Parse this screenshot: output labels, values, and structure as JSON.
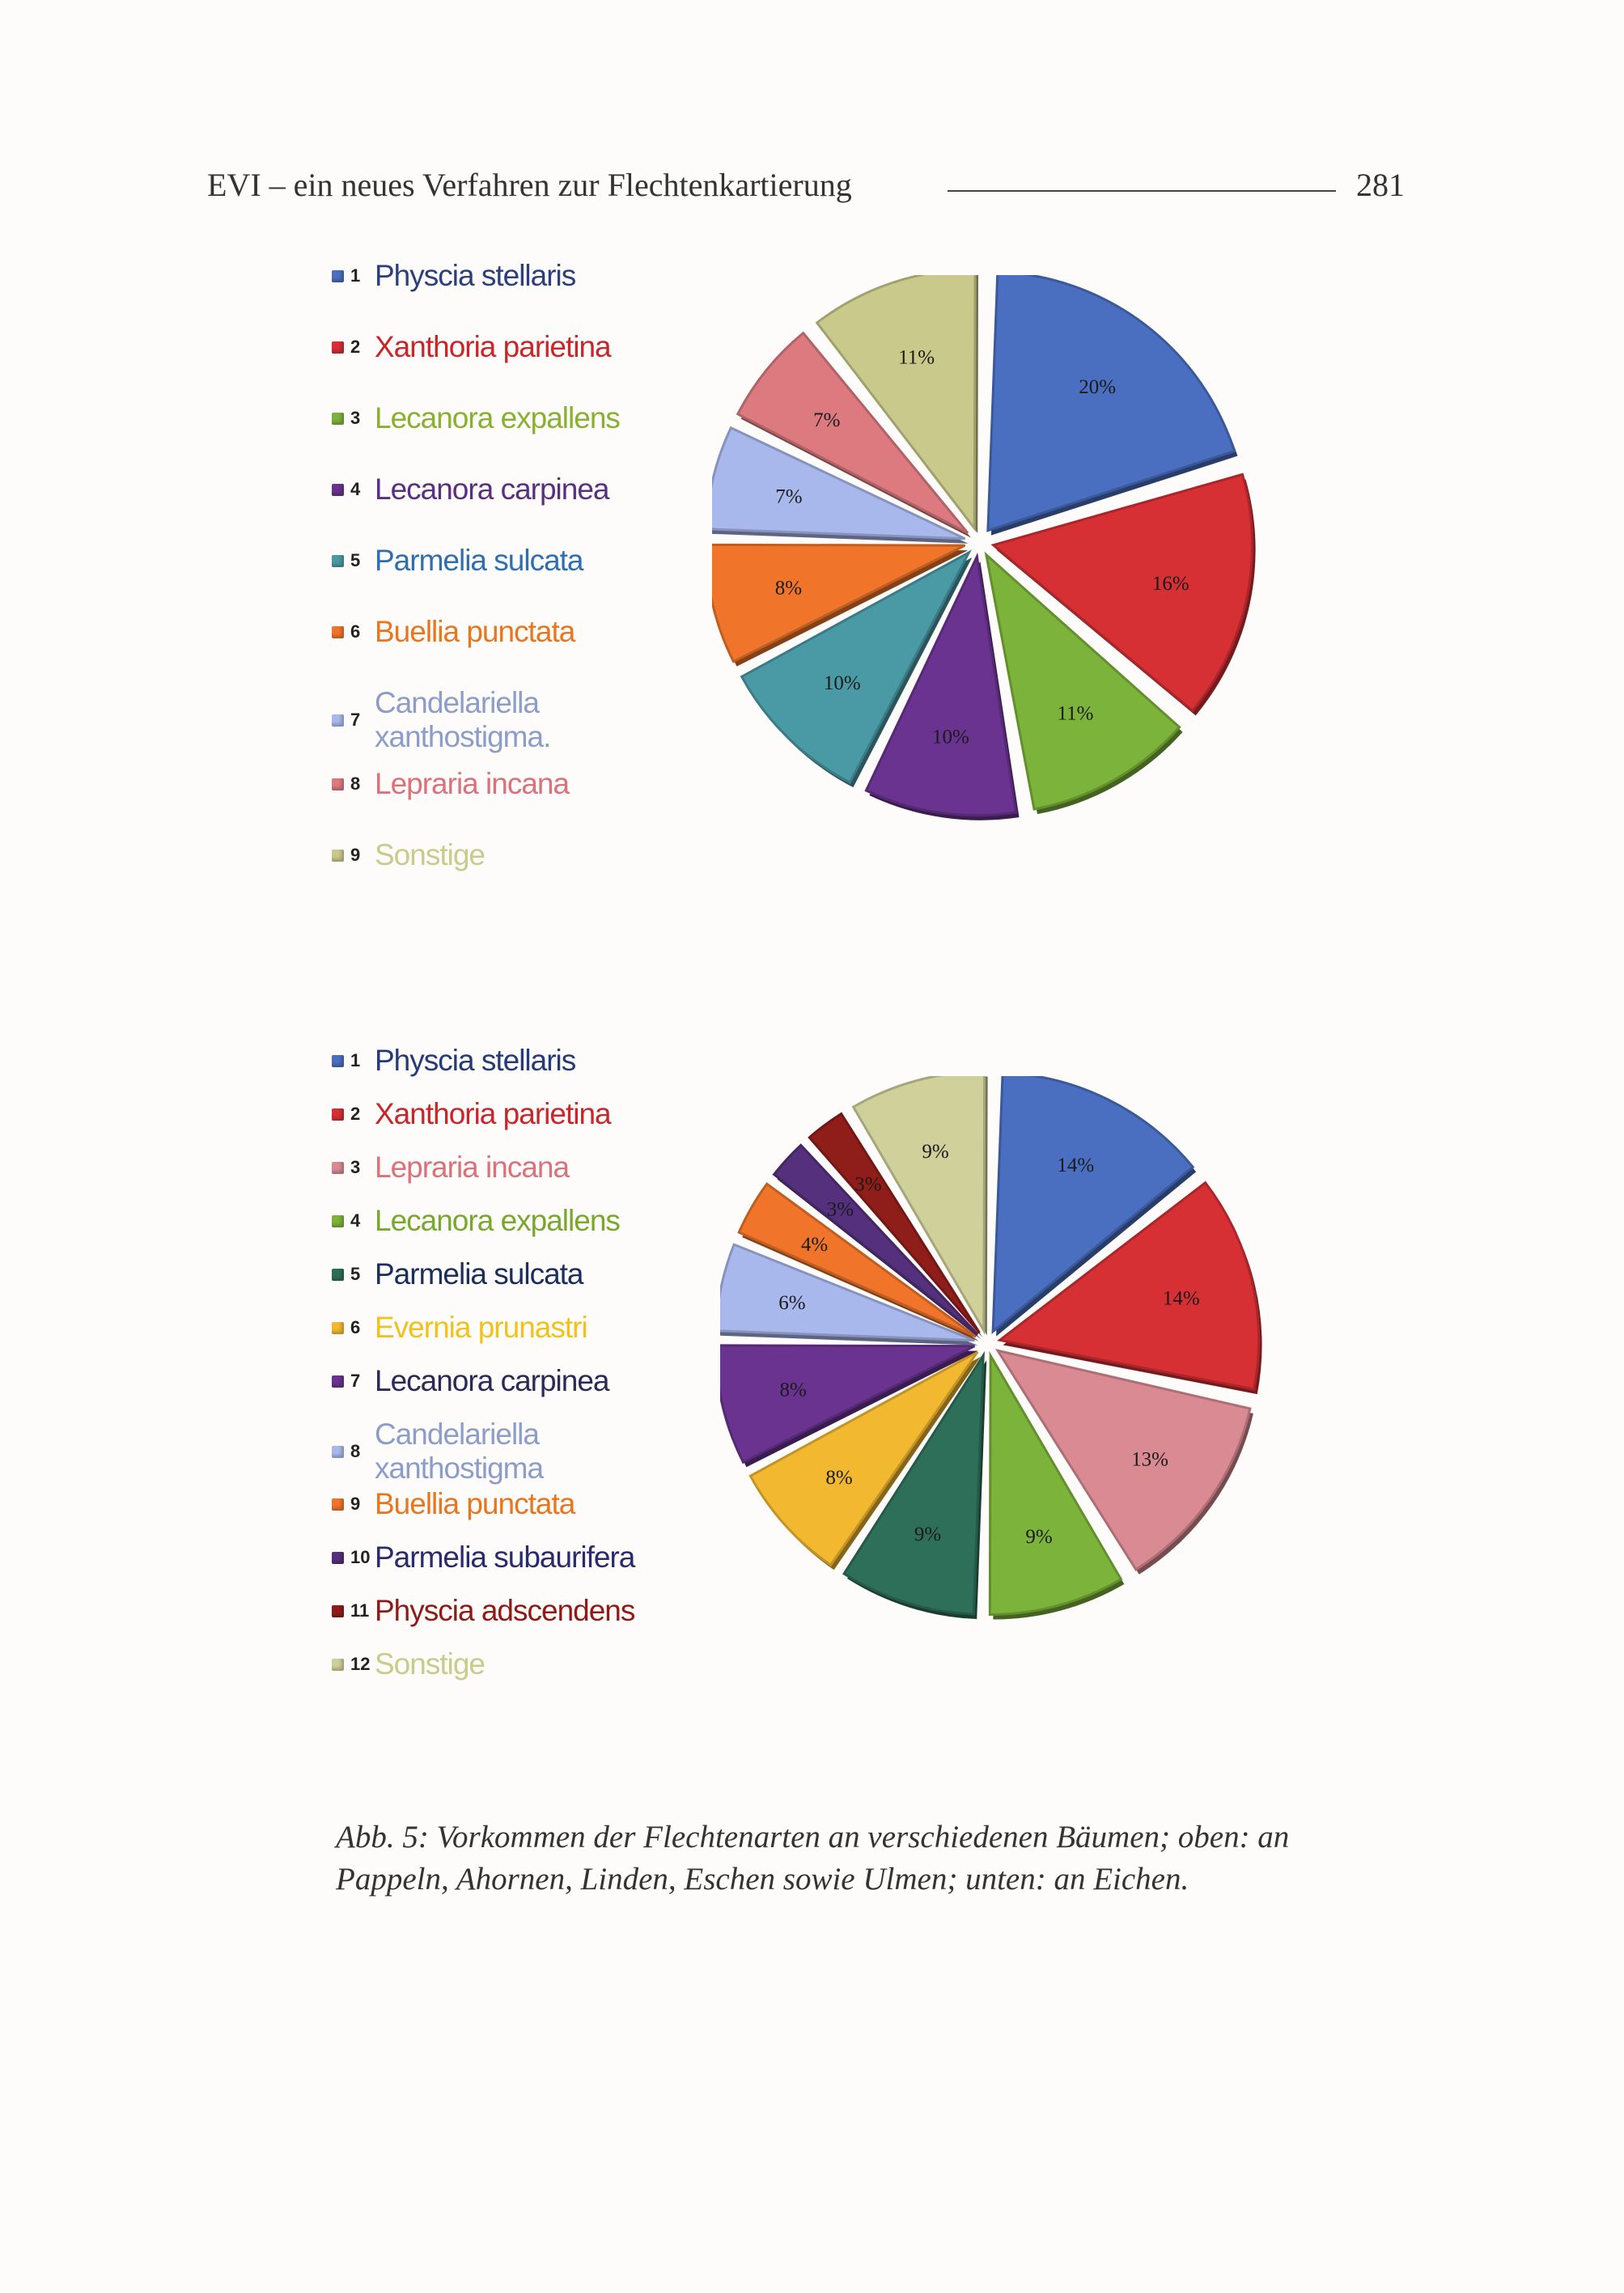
{
  "header": {
    "title": "EVI – ein neues Verfahren zur Flechtenkartierung",
    "page_number": "281"
  },
  "caption": "Abb. 5: Vorkommen der Flechtenarten an verschiedenen Bäumen; oben: an Pappeln, Ahornen, Linden, Eschen sowie Ulmen; unten: an Eichen.",
  "chart_data": [
    {
      "type": "pie",
      "title": "",
      "legend_position": "left",
      "categories": [
        "Physcia stellaris",
        "Xanthoria parietina",
        "Lecanora expallens",
        "Lecanora carpinea",
        "Parmelia sulcata",
        "Buellia punctata",
        "Candelariella xanthostigma.",
        "Lepraria incana",
        "Sonstige"
      ],
      "legend_numbers": [
        "1",
        "2",
        "3",
        "4",
        "5",
        "6",
        "7",
        "8",
        "9"
      ],
      "legend_text_colors": [
        "#2b3f7e",
        "#c8262a",
        "#8ab030",
        "#5a2f82",
        "#2f6fb0",
        "#e8761f",
        "#8b9dc8",
        "#d9727a",
        "#c8cc8a"
      ],
      "legend_label_lines": [
        [
          "Physcia stellaris"
        ],
        [
          "Xanthoria parietina"
        ],
        [
          "Lecanora expallens"
        ],
        [
          "Lecanora carpinea"
        ],
        [
          "Parmelia sulcata"
        ],
        [
          "Buellia punctata"
        ],
        [
          "Candelariella",
          "xanthostigma."
        ],
        [
          "Lepraria incana"
        ],
        [
          "Sonstige"
        ]
      ],
      "slice_order": [
        "Physcia stellaris",
        "Xanthoria parietina",
        "Lecanora expallens",
        "Lecanora carpinea",
        "Parmelia sulcata",
        "Buellia punctata",
        "Candelariella xanthostigma.",
        "Lepraria incana",
        "Sonstige"
      ],
      "values": [
        20,
        16,
        11,
        10,
        10,
        8,
        7,
        7,
        11
      ],
      "labels": [
        "20%",
        "16%",
        "11%",
        "10%",
        "10%",
        "8%",
        "7%",
        "7%",
        "11%"
      ],
      "colors": [
        "#4a6fc0",
        "#d63035",
        "#7cb33a",
        "#6a3390",
        "#4a9aa6",
        "#f0752a",
        "#a9b8ec",
        "#dd7a80",
        "#c9c98c"
      ]
    },
    {
      "type": "pie",
      "title": "",
      "legend_position": "left",
      "categories": [
        "Physcia stellaris",
        "Xanthoria parietina",
        "Lepraria incana",
        "Lecanora expallens",
        "Parmelia sulcata",
        "Evernia prunastri",
        "Lecanora carpinea",
        "Candelariella xanthostigma",
        "Buellia punctata",
        "Parmelia subaurifera",
        "Physcia adscendens",
        "Sonstige"
      ],
      "legend_numbers": [
        "1",
        "2",
        "3",
        "4",
        "5",
        "6",
        "7",
        "8",
        "9",
        "10",
        "11",
        "12"
      ],
      "legend_text_colors": [
        "#253a78",
        "#c8262a",
        "#d9727a",
        "#7aa82e",
        "#1c2e5c",
        "#f0c21a",
        "#2a2a58",
        "#8b9dc8",
        "#e8761f",
        "#2a2a70",
        "#8f1a16",
        "#c8cc8a"
      ],
      "legend_label_lines": [
        [
          "Physcia stellaris"
        ],
        [
          "Xanthoria parietina"
        ],
        [
          "Lepraria incana"
        ],
        [
          "Lecanora expallens"
        ],
        [
          "Parmelia sulcata"
        ],
        [
          "Evernia prunastri"
        ],
        [
          "Lecanora carpinea"
        ],
        [
          "Candelariella",
          "xanthostigma"
        ],
        [
          "Buellia punctata"
        ],
        [
          "Parmelia subaurifera"
        ],
        [
          "Physcia adscendens"
        ],
        [
          "Sonstige"
        ]
      ],
      "slice_order": [
        "Physcia stellaris",
        "Xanthoria parietina",
        "Lepraria incana",
        "Lecanora expallens",
        "Parmelia sulcata",
        "Evernia prunastri",
        "Lecanora carpinea",
        "Candelariella xanthostigma",
        "Buellia punctata",
        "Parmelia subaurifera",
        "Physcia adscendens",
        "Sonstige"
      ],
      "values": [
        14,
        14,
        13,
        9,
        9,
        8,
        8,
        6,
        4,
        3,
        3,
        9
      ],
      "labels": [
        "14%",
        "14%",
        "13%",
        "9%",
        "9%",
        "8%",
        "8%",
        "6%",
        "4%",
        "3%",
        "3%",
        "9%"
      ],
      "colors": [
        "#4a6fc0",
        "#d63035",
        "#d98a92",
        "#7cb33a",
        "#2e6f5a",
        "#f2b830",
        "#6a3390",
        "#a9b8ec",
        "#f0752a",
        "#55307d",
        "#8f1d1a",
        "#d0d09a"
      ]
    }
  ]
}
